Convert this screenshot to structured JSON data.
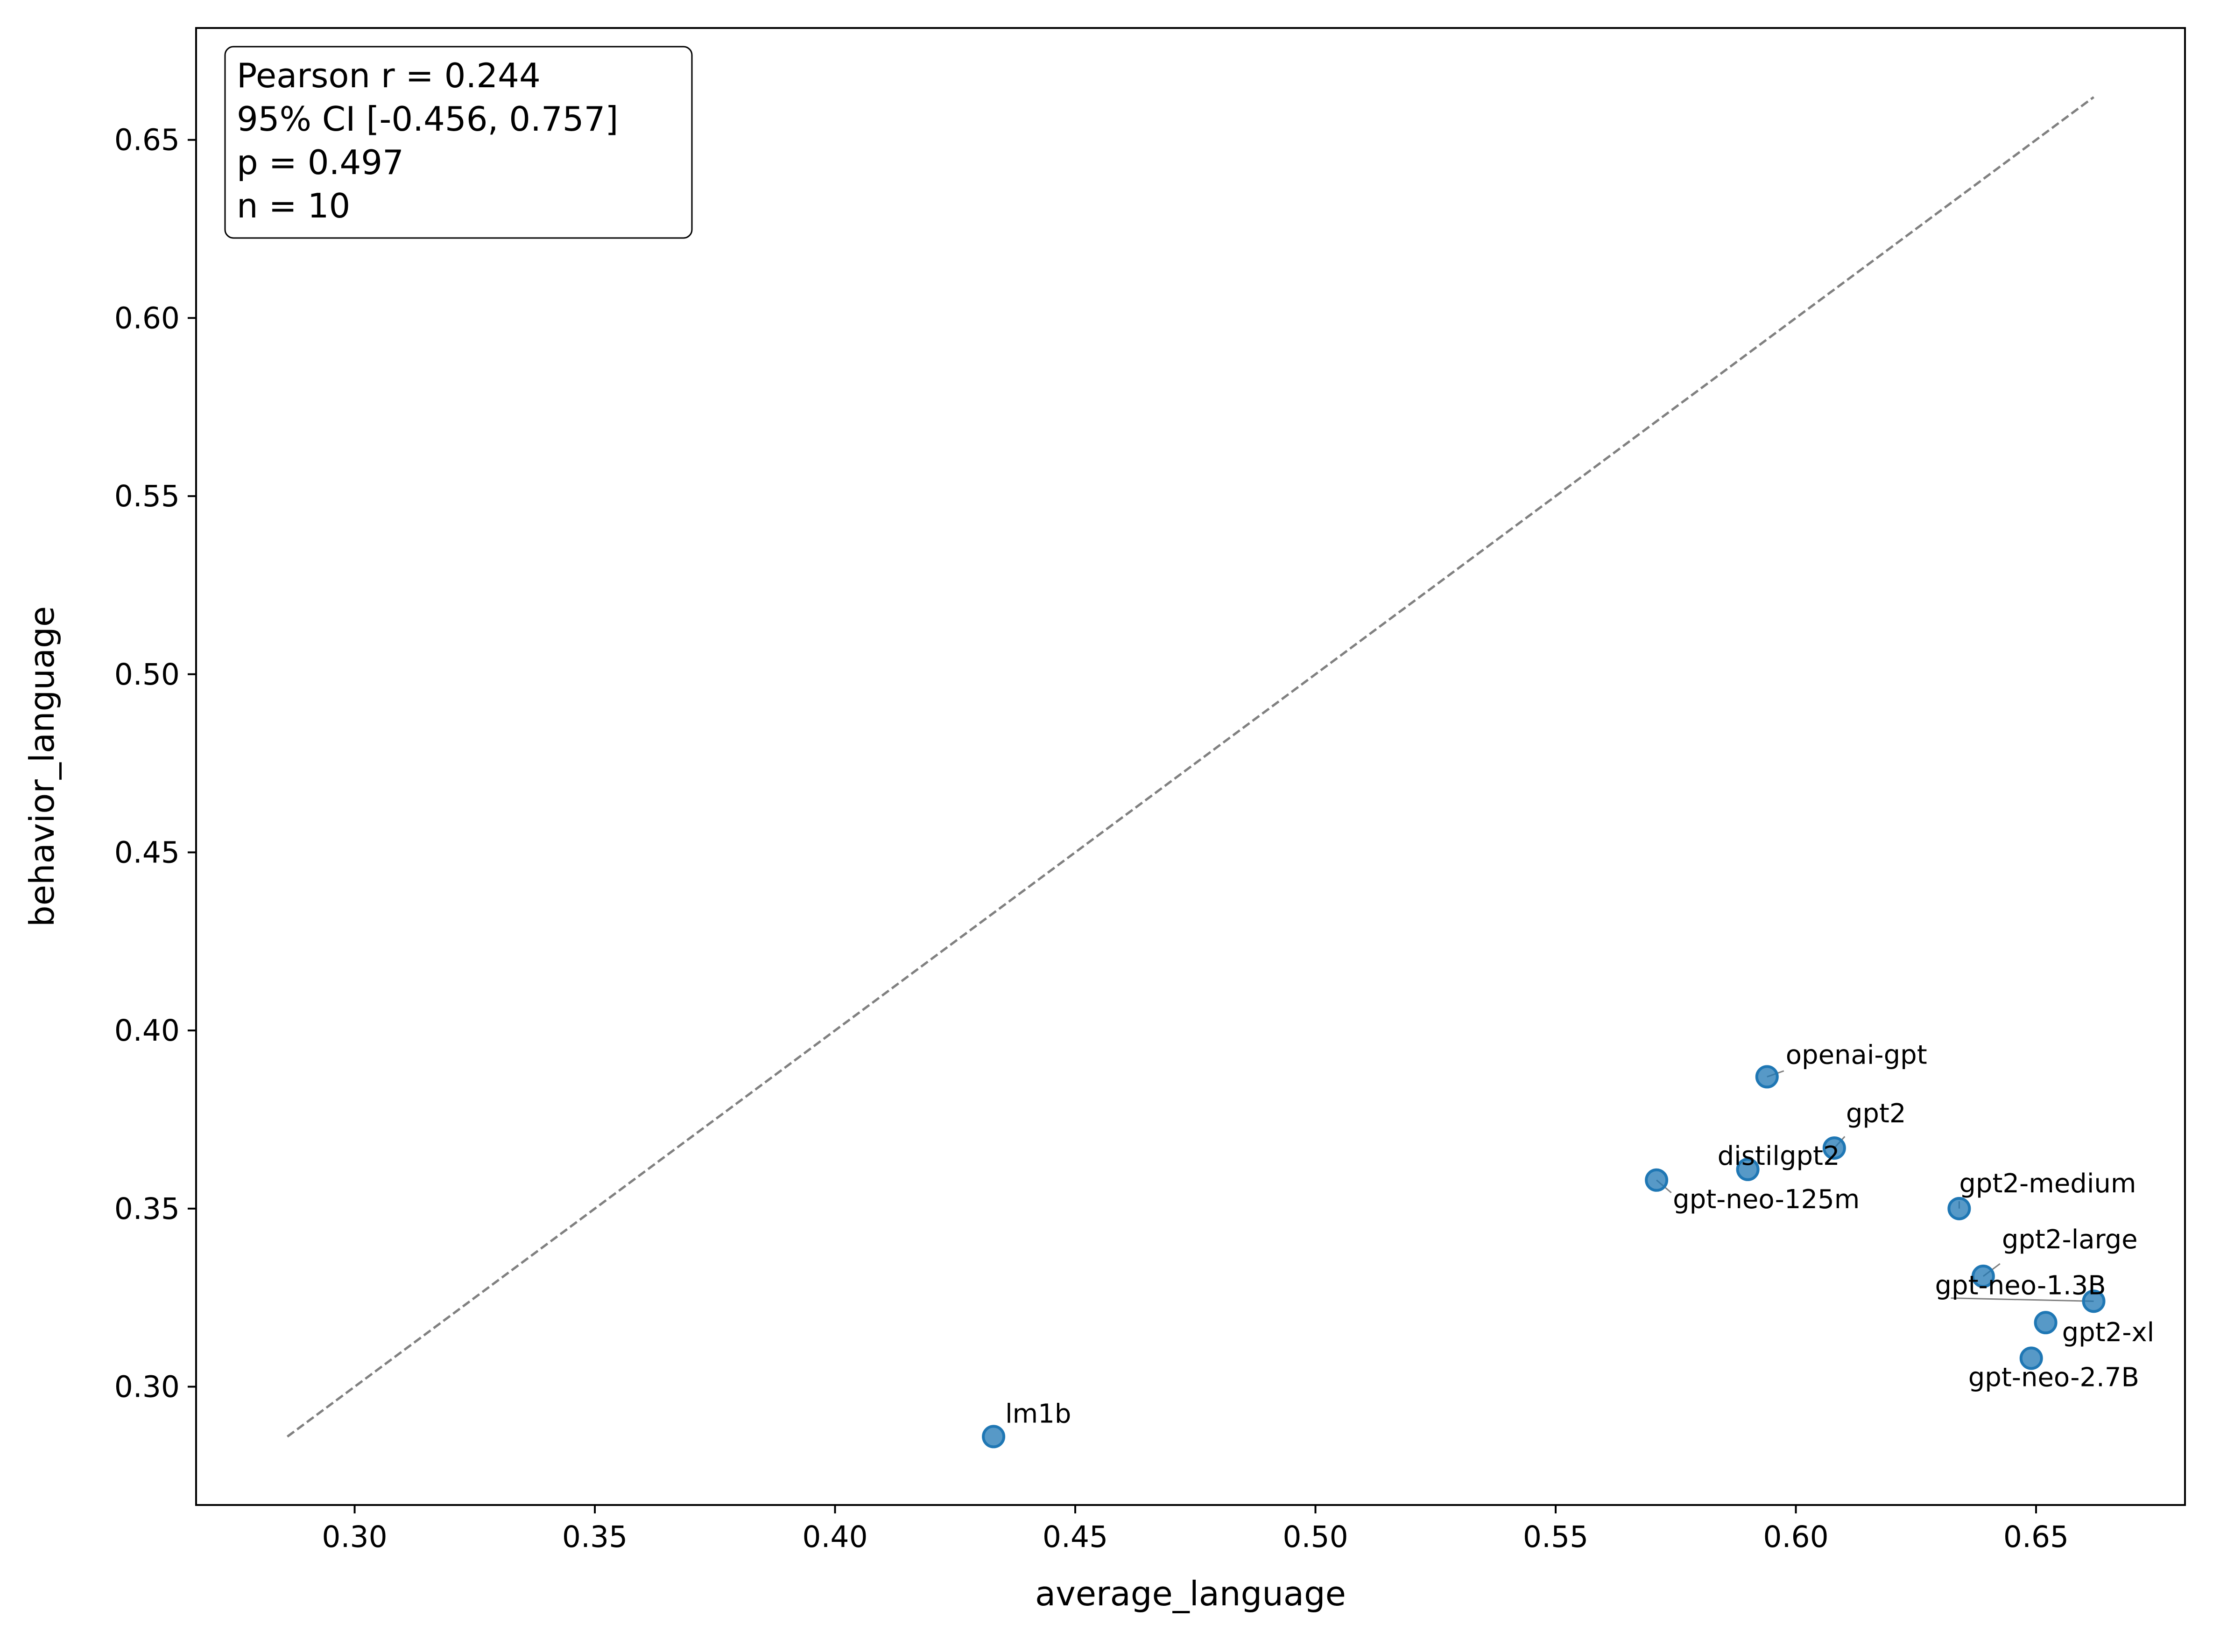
{
  "chart_data": {
    "type": "scatter",
    "xlabel": "average_language",
    "ylabel": "behavior_language",
    "xlim": [
      0.267,
      0.681
    ],
    "ylim": [
      0.2668,
      0.6814
    ],
    "xticks": [
      "0.30",
      "0.35",
      "0.40",
      "0.45",
      "0.50",
      "0.55",
      "0.60",
      "0.65"
    ],
    "yticks": [
      "0.30",
      "0.35",
      "0.40",
      "0.45",
      "0.50",
      "0.55",
      "0.60",
      "0.65"
    ],
    "grid": false,
    "point_color": "#1f77b4",
    "reference_line": {
      "style": "dashed",
      "color": "#808080",
      "from": [
        0.286,
        0.286
      ],
      "to": [
        0.662,
        0.662
      ]
    },
    "stats_box": {
      "placement": "top-left",
      "lines": [
        "Pearson r = 0.244",
        "95% CI [-0.456, 0.757]",
        "p = 0.497",
        "n = 10"
      ]
    },
    "points": [
      {
        "label": "openai-gpt",
        "x": 0.594,
        "y": 0.387
      },
      {
        "label": "gpt2",
        "x": 0.608,
        "y": 0.367
      },
      {
        "label": "distilgpt2",
        "x": 0.59,
        "y": 0.361
      },
      {
        "label": "gpt-neo-125m",
        "x": 0.571,
        "y": 0.358
      },
      {
        "label": "gpt2-medium",
        "x": 0.634,
        "y": 0.35
      },
      {
        "label": "gpt2-large",
        "x": 0.639,
        "y": 0.331
      },
      {
        "label": "gpt-neo-1.3B",
        "x": 0.662,
        "y": 0.324
      },
      {
        "label": "gpt2-xl",
        "x": 0.652,
        "y": 0.318
      },
      {
        "label": "gpt-neo-2.7B",
        "x": 0.649,
        "y": 0.308
      },
      {
        "label": "lm1b",
        "x": 0.433,
        "y": 0.286
      }
    ]
  }
}
